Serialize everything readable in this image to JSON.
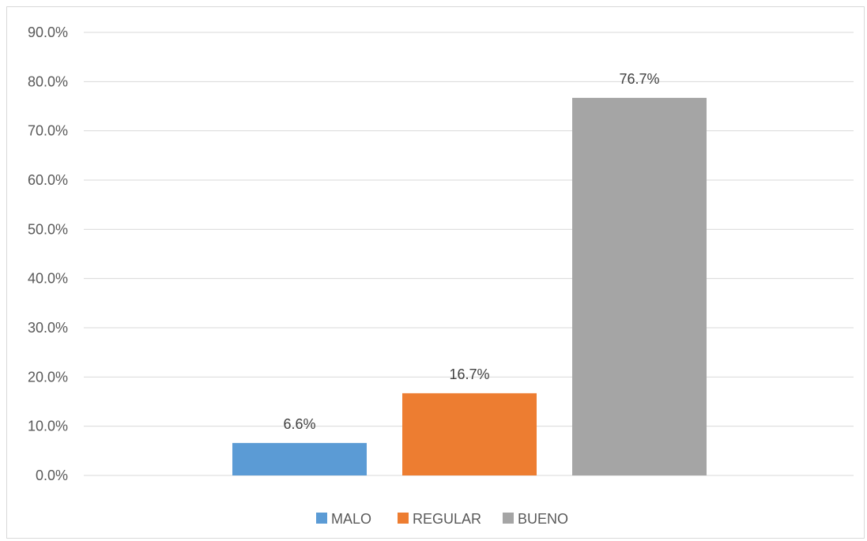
{
  "chart_data": {
    "type": "bar",
    "title": "",
    "xlabel": "",
    "ylabel": "",
    "ylim": [
      0,
      90
    ],
    "yticks": [
      0,
      10,
      20,
      30,
      40,
      50,
      60,
      70,
      80,
      90
    ],
    "ytick_format": "one-decimal-percent",
    "grid": true,
    "legend_position": "bottom",
    "categories": [
      "MALO",
      "REGULAR",
      "BUENO"
    ],
    "values": [
      6.6,
      16.7,
      76.7
    ],
    "data_labels": [
      "6.6%",
      "16.7%",
      "76.7%"
    ],
    "colors": [
      "#5b9bd5",
      "#ed7d31",
      "#a5a5a5"
    ],
    "legend": [
      "MALO",
      "REGULAR",
      "BUENO"
    ]
  }
}
